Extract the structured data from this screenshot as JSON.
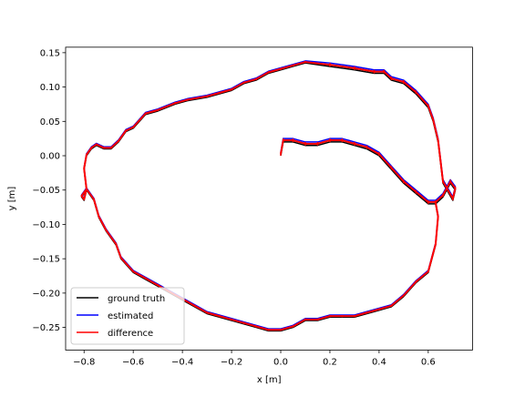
{
  "chart_data": {
    "type": "line",
    "xlabel": "x [m]",
    "ylabel": "y [m]",
    "xlim": [
      -0.875,
      0.78
    ],
    "ylim": [
      -0.283,
      0.158
    ],
    "xticks": [
      -0.8,
      -0.6,
      -0.4,
      -0.2,
      0.0,
      0.2,
      0.4,
      0.6
    ],
    "xtick_labels": [
      "−0.8",
      "−0.6",
      "−0.4",
      "−0.2",
      "0.0",
      "0.2",
      "0.4",
      "0.6"
    ],
    "yticks": [
      0.15,
      0.1,
      0.05,
      0.0,
      -0.05,
      -0.1,
      -0.15,
      -0.2,
      -0.25
    ],
    "ytick_labels": [
      "0.15",
      "0.10",
      "0.05",
      "0.00",
      "−0.05",
      "−0.10",
      "−0.15",
      "−0.20",
      "−0.25"
    ],
    "grid": false,
    "legend_position": "lower-left",
    "series": [
      {
        "name": "ground truth",
        "color": "#000000",
        "x": [
          0.0,
          0.01,
          0.05,
          0.1,
          0.15,
          0.2,
          0.25,
          0.3,
          0.35,
          0.4,
          0.45,
          0.5,
          0.55,
          0.6,
          0.63,
          0.66,
          0.69,
          0.71,
          0.7,
          0.66,
          0.65,
          0.64,
          0.62,
          0.6,
          0.55,
          0.5,
          0.45,
          0.42,
          0.38,
          0.3,
          0.2,
          0.1,
          0.05,
          0.0,
          -0.05,
          -0.1,
          -0.15,
          -0.2,
          -0.25,
          -0.3,
          -0.38,
          -0.43,
          -0.5,
          -0.55,
          -0.6,
          -0.63,
          -0.66,
          -0.69,
          -0.72,
          -0.75,
          -0.77,
          -0.79,
          -0.8,
          -0.79,
          -0.8,
          -0.81,
          -0.79,
          -0.76,
          -0.74,
          -0.71,
          -0.67,
          -0.65,
          -0.6,
          -0.55,
          -0.5,
          -0.45,
          -0.4,
          -0.35,
          -0.3,
          -0.25,
          -0.2,
          -0.15,
          -0.1,
          -0.05,
          0.0,
          0.05,
          0.1,
          0.15,
          0.2,
          0.25,
          0.3,
          0.35,
          0.4,
          0.45,
          0.5,
          0.55,
          0.6,
          0.63,
          0.64,
          0.63
        ],
        "y": [
          0.0,
          0.02,
          0.02,
          0.015,
          0.015,
          0.02,
          0.02,
          0.015,
          0.01,
          0.0,
          -0.02,
          -0.04,
          -0.055,
          -0.07,
          -0.07,
          -0.06,
          -0.04,
          -0.05,
          -0.065,
          -0.04,
          -0.01,
          0.02,
          0.05,
          0.07,
          0.09,
          0.105,
          0.11,
          0.12,
          0.12,
          0.125,
          0.13,
          0.135,
          0.13,
          0.125,
          0.12,
          0.11,
          0.105,
          0.095,
          0.09,
          0.085,
          0.08,
          0.075,
          0.065,
          0.06,
          0.04,
          0.035,
          0.02,
          0.01,
          0.01,
          0.015,
          0.01,
          0.0,
          -0.02,
          -0.05,
          -0.065,
          -0.06,
          -0.05,
          -0.065,
          -0.09,
          -0.11,
          -0.13,
          -0.15,
          -0.17,
          -0.18,
          -0.19,
          -0.2,
          -0.21,
          -0.22,
          -0.23,
          -0.235,
          -0.24,
          -0.245,
          -0.25,
          -0.255,
          -0.255,
          -0.25,
          -0.24,
          -0.24,
          -0.235,
          -0.235,
          -0.235,
          -0.23,
          -0.225,
          -0.22,
          -0.205,
          -0.185,
          -0.17,
          -0.13,
          -0.09,
          -0.07
        ]
      },
      {
        "name": "estimated",
        "color": "#0000ff",
        "x": [
          0.0,
          0.01,
          0.05,
          0.1,
          0.15,
          0.2,
          0.25,
          0.3,
          0.35,
          0.4,
          0.45,
          0.5,
          0.55,
          0.6,
          0.63,
          0.66,
          0.69,
          0.71,
          0.7,
          0.66,
          0.65,
          0.64,
          0.62,
          0.6,
          0.55,
          0.5,
          0.45,
          0.42,
          0.38,
          0.3,
          0.2,
          0.1,
          0.05,
          0.0,
          -0.05,
          -0.1,
          -0.15,
          -0.2,
          -0.25,
          -0.3,
          -0.38,
          -0.43,
          -0.5,
          -0.55,
          -0.6,
          -0.63,
          -0.66,
          -0.69,
          -0.72,
          -0.75,
          -0.77,
          -0.79,
          -0.8,
          -0.79,
          -0.8,
          -0.81,
          -0.79,
          -0.76,
          -0.74,
          -0.71,
          -0.67,
          -0.65,
          -0.6,
          -0.55,
          -0.5,
          -0.45,
          -0.4,
          -0.35,
          -0.3,
          -0.25,
          -0.2,
          -0.15,
          -0.1,
          -0.05,
          0.0,
          0.05,
          0.1,
          0.15,
          0.2,
          0.25,
          0.3,
          0.35,
          0.4,
          0.45,
          0.5,
          0.55,
          0.6,
          0.63,
          0.64,
          0.63
        ],
        "y": [
          0.005,
          0.025,
          0.025,
          0.02,
          0.02,
          0.025,
          0.025,
          0.02,
          0.015,
          0.005,
          -0.015,
          -0.035,
          -0.05,
          -0.065,
          -0.065,
          -0.055,
          -0.035,
          -0.045,
          -0.06,
          -0.035,
          -0.005,
          0.025,
          0.055,
          0.075,
          0.095,
          0.11,
          0.115,
          0.125,
          0.125,
          0.13,
          0.135,
          0.138,
          0.133,
          0.128,
          0.123,
          0.113,
          0.108,
          0.098,
          0.093,
          0.088,
          0.083,
          0.078,
          0.068,
          0.063,
          0.043,
          0.038,
          0.023,
          0.013,
          0.013,
          0.018,
          0.013,
          0.003,
          -0.017,
          -0.047,
          -0.062,
          -0.057,
          -0.047,
          -0.062,
          -0.087,
          -0.107,
          -0.127,
          -0.147,
          -0.167,
          -0.177,
          -0.187,
          -0.197,
          -0.207,
          -0.217,
          -0.227,
          -0.232,
          -0.237,
          -0.242,
          -0.247,
          -0.252,
          -0.252,
          -0.247,
          -0.237,
          -0.237,
          -0.232,
          -0.232,
          -0.232,
          -0.227,
          -0.222,
          -0.217,
          -0.202,
          -0.182,
          -0.167,
          -0.127,
          -0.087,
          -0.067
        ]
      },
      {
        "name": "difference",
        "color": "#ff0000"
      }
    ]
  }
}
